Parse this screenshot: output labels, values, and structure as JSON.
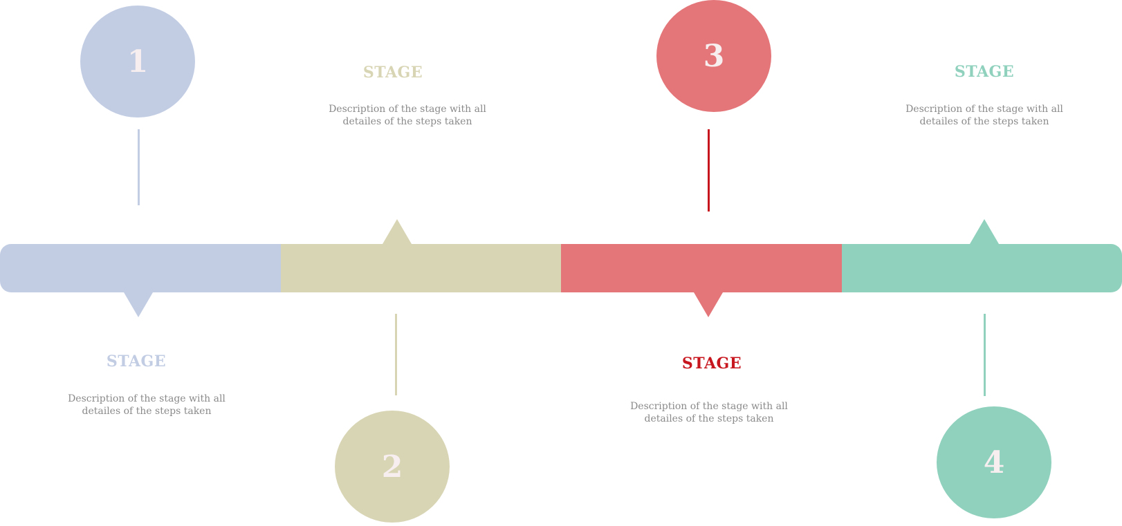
{
  "colors": {
    "stage1": "#c2cde4",
    "stage2": "#d8d5b4",
    "stage3": "#e4767a",
    "stage4": "#8fd1bd",
    "stage3_accent": "#c8161e",
    "description": "#8a8a8a"
  },
  "stages": [
    {
      "number": "1",
      "title": "STAGE",
      "description_line1": "Description of the stage with all",
      "description_line2": "detailes of the steps taken"
    },
    {
      "number": "2",
      "title": "STAGE",
      "description_line1": "Description of the stage with all",
      "description_line2": "detailes of the steps taken"
    },
    {
      "number": "3",
      "title": "STAGE",
      "description_line1": "Description of the stage with all",
      "description_line2": "detailes of the steps taken"
    },
    {
      "number": "4",
      "title": "STAGE",
      "description_line1": "Description of the stage with all",
      "description_line2": "detailes of the steps taken"
    }
  ]
}
